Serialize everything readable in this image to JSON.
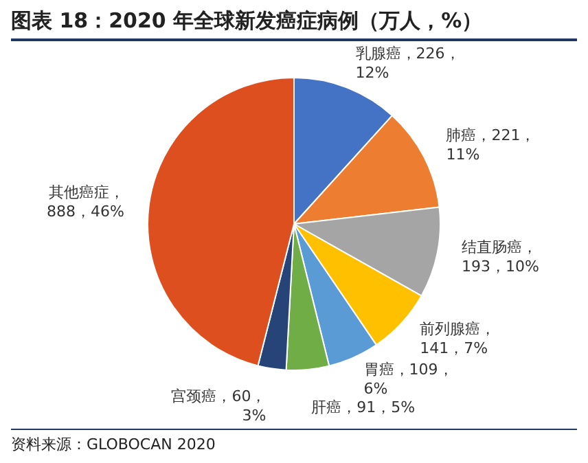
{
  "chart_data": {
    "type": "pie",
    "title": "图表 18：2020 年全球新发癌症病例（万人，%）",
    "categories": [
      "乳腺癌",
      "肺癌",
      "结直肠癌",
      "前列腺癌",
      "胃癌",
      "肝癌",
      "宫颈癌",
      "其他癌症"
    ],
    "values": [
      226,
      221,
      193,
      141,
      109,
      91,
      60,
      888
    ],
    "value_labels": [
      "，226，12%",
      "，221，11%",
      "，193，10%",
      "，141，7%",
      "，109，6%",
      "，91，5%",
      "，60，3%",
      "，888，46%"
    ],
    "colors": [
      "#4472c4",
      "#ed7d31",
      "#a5a5a5",
      "#ffc000",
      "#5b9bd5",
      "#70ad47",
      "#264478",
      "#dd4f1f"
    ],
    "legend": false,
    "annotations": [
      "资料来源：GLOBOCAN 2020"
    ]
  }
}
